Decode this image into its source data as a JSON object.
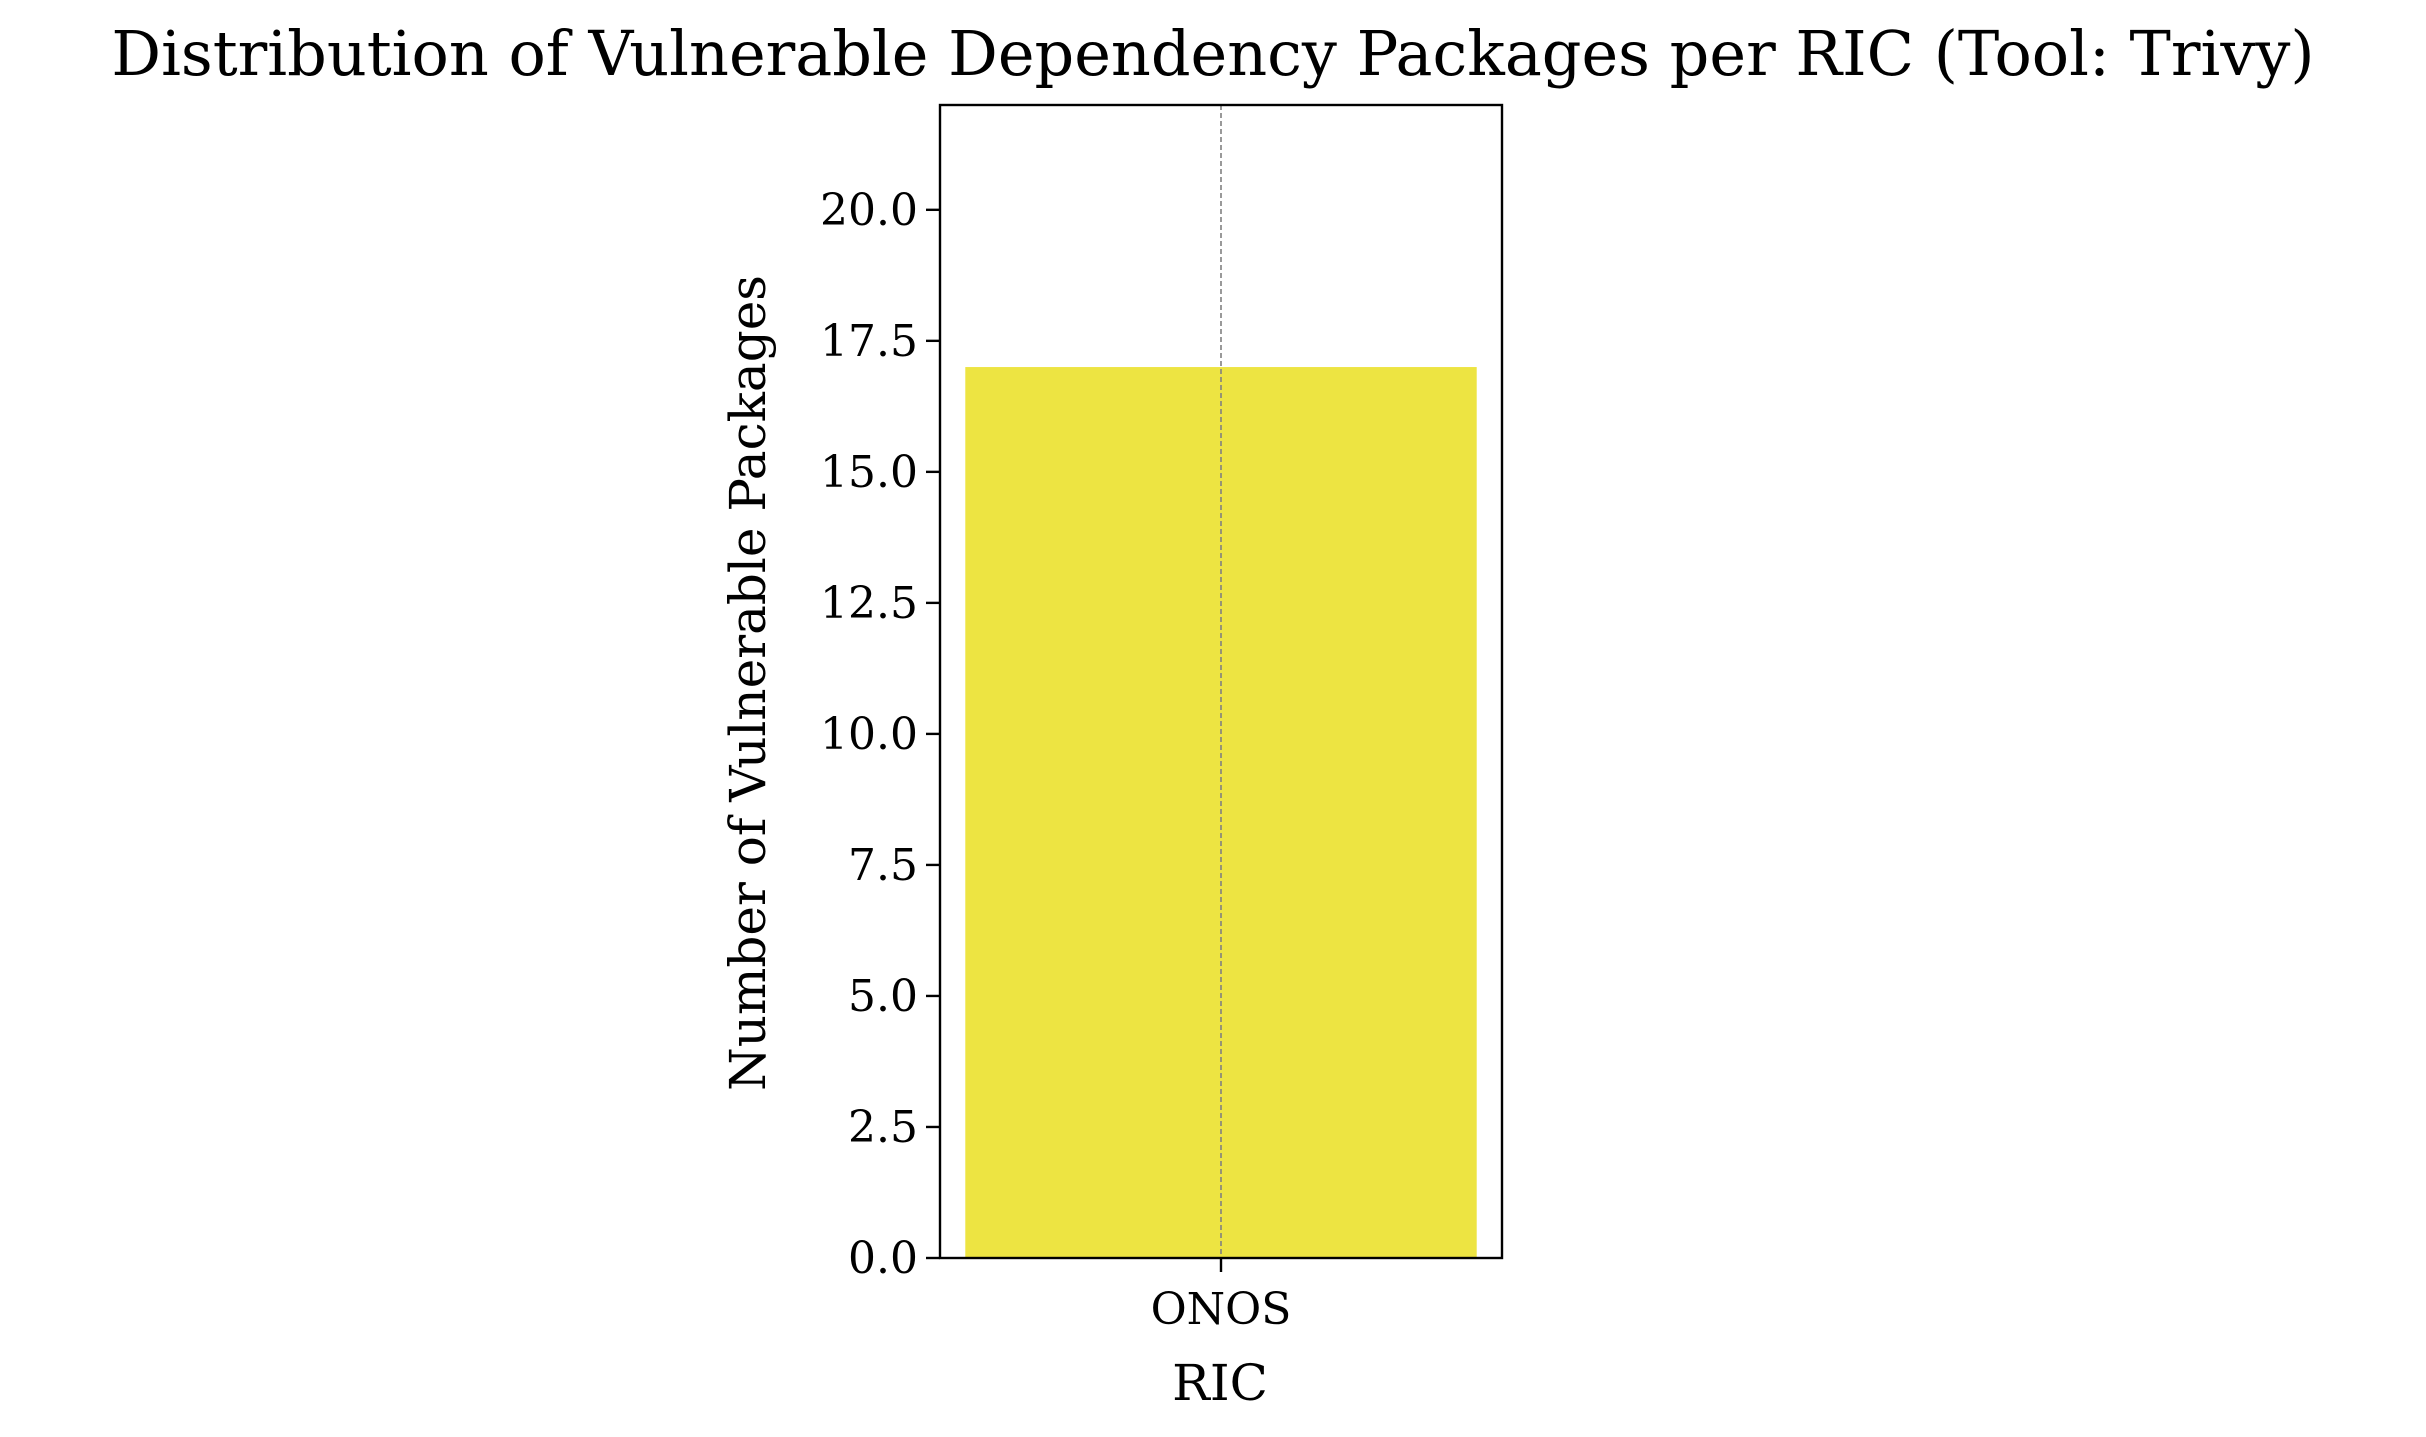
{
  "chart_data": {
    "type": "bar",
    "title": "Distribution of Vulnerable Dependency Packages per RIC (Tool: Trivy)",
    "xlabel": "RIC",
    "ylabel": "Number of Vulnerable Packages",
    "categories": [
      "ONOS"
    ],
    "values": [
      17
    ],
    "ylim": [
      0,
      22
    ],
    "yticks": [
      0.0,
      2.5,
      5.0,
      7.5,
      10.0,
      12.5,
      15.0,
      17.5,
      20.0
    ],
    "ytick_labels": [
      "0.0",
      "2.5",
      "5.0",
      "7.5",
      "10.0",
      "12.5",
      "15.0",
      "17.5",
      "20.0"
    ],
    "bar_color": "#ede442",
    "grid": "vertical dashed gray line at category",
    "legend": "none"
  }
}
